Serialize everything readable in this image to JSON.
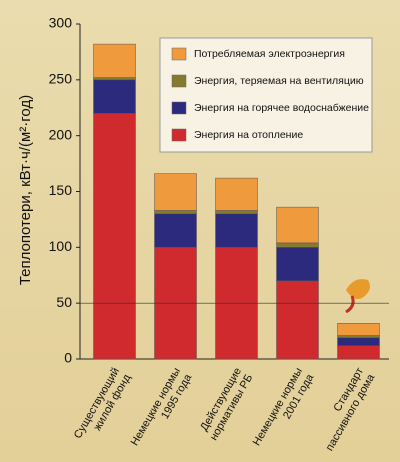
{
  "chart_data": {
    "type": "stacked_bar",
    "y_label": "Теплопотери, кВт·ч/(м²·год)",
    "categories": [
      "Существующий\nжилой фонд",
      "Немецкие нормы\n1995 года",
      "Действующие\nнормативы РБ",
      "Немецкие нормы\n2001 года",
      "Стандарт\nпассивного дома"
    ],
    "series": [
      {
        "name": "Энергия на отопление",
        "color": "#d12a2e",
        "values": [
          220,
          100,
          100,
          70,
          12
        ]
      },
      {
        "name": "Энергия на горячее водоснабжение",
        "color": "#2b2a7c",
        "values": [
          30,
          30,
          30,
          30,
          7
        ]
      },
      {
        "name": "Энергия, теряемая на вентиляцию",
        "color": "#857a2e",
        "values": [
          2,
          3,
          3,
          4,
          2
        ]
      },
      {
        "name": "Потребляемая электроэнергия",
        "color": "#ef9a3c",
        "values": [
          30,
          33,
          29,
          32,
          11
        ]
      }
    ],
    "ylim": [
      0,
      300
    ],
    "yticks": [
      0,
      50,
      100,
      150,
      200,
      250,
      300
    ],
    "hline": 50
  }
}
